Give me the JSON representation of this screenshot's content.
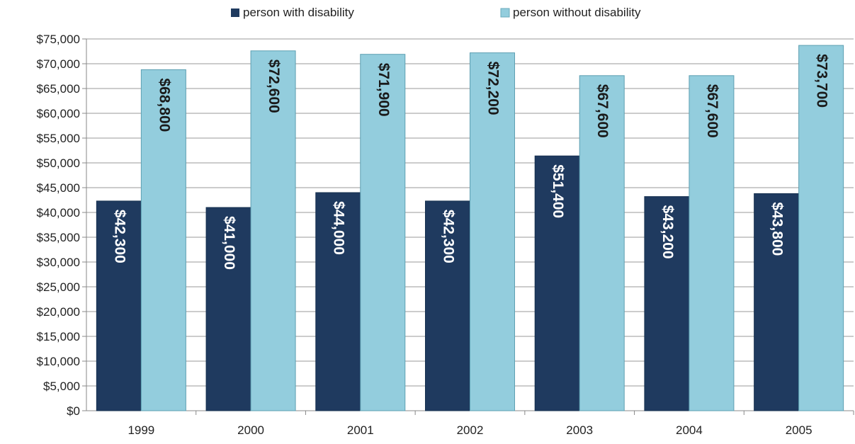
{
  "chart_data": {
    "type": "bar",
    "title": "",
    "xlabel": "",
    "ylabel": "",
    "categories": [
      "1999",
      "2000",
      "2001",
      "2002",
      "2003",
      "2004",
      "2005"
    ],
    "series": [
      {
        "name": "person with disability",
        "color": "#1f3a5f",
        "values": [
          42300,
          41000,
          44000,
          42300,
          51400,
          43200,
          43800
        ],
        "labels": [
          "$42,300",
          "$41,000",
          "$44,000",
          "$42,300",
          "$51,400",
          "$43,200",
          "$43,800"
        ]
      },
      {
        "name": "person without disability",
        "color": "#93cddd",
        "values": [
          68800,
          72600,
          71900,
          72200,
          67600,
          67600,
          73700
        ],
        "labels": [
          "$68,800",
          "$72,600",
          "$71,900",
          "$72,200",
          "$67,600",
          "$67,600",
          "$73,700"
        ]
      }
    ],
    "ylim": [
      0,
      75000
    ],
    "y_ticks": [
      0,
      5000,
      10000,
      15000,
      20000,
      25000,
      30000,
      35000,
      40000,
      45000,
      50000,
      55000,
      60000,
      65000,
      70000,
      75000
    ],
    "y_tick_labels": [
      "$0",
      "$5,000",
      "$10,000",
      "$15,000",
      "$20,000",
      "$25,000",
      "$30,000",
      "$35,000",
      "$40,000",
      "$45,000",
      "$50,000",
      "$55,000",
      "$60,000",
      "$65,000",
      "$70,000",
      "$75,000"
    ],
    "grid": true,
    "legend_position": "top-center"
  }
}
